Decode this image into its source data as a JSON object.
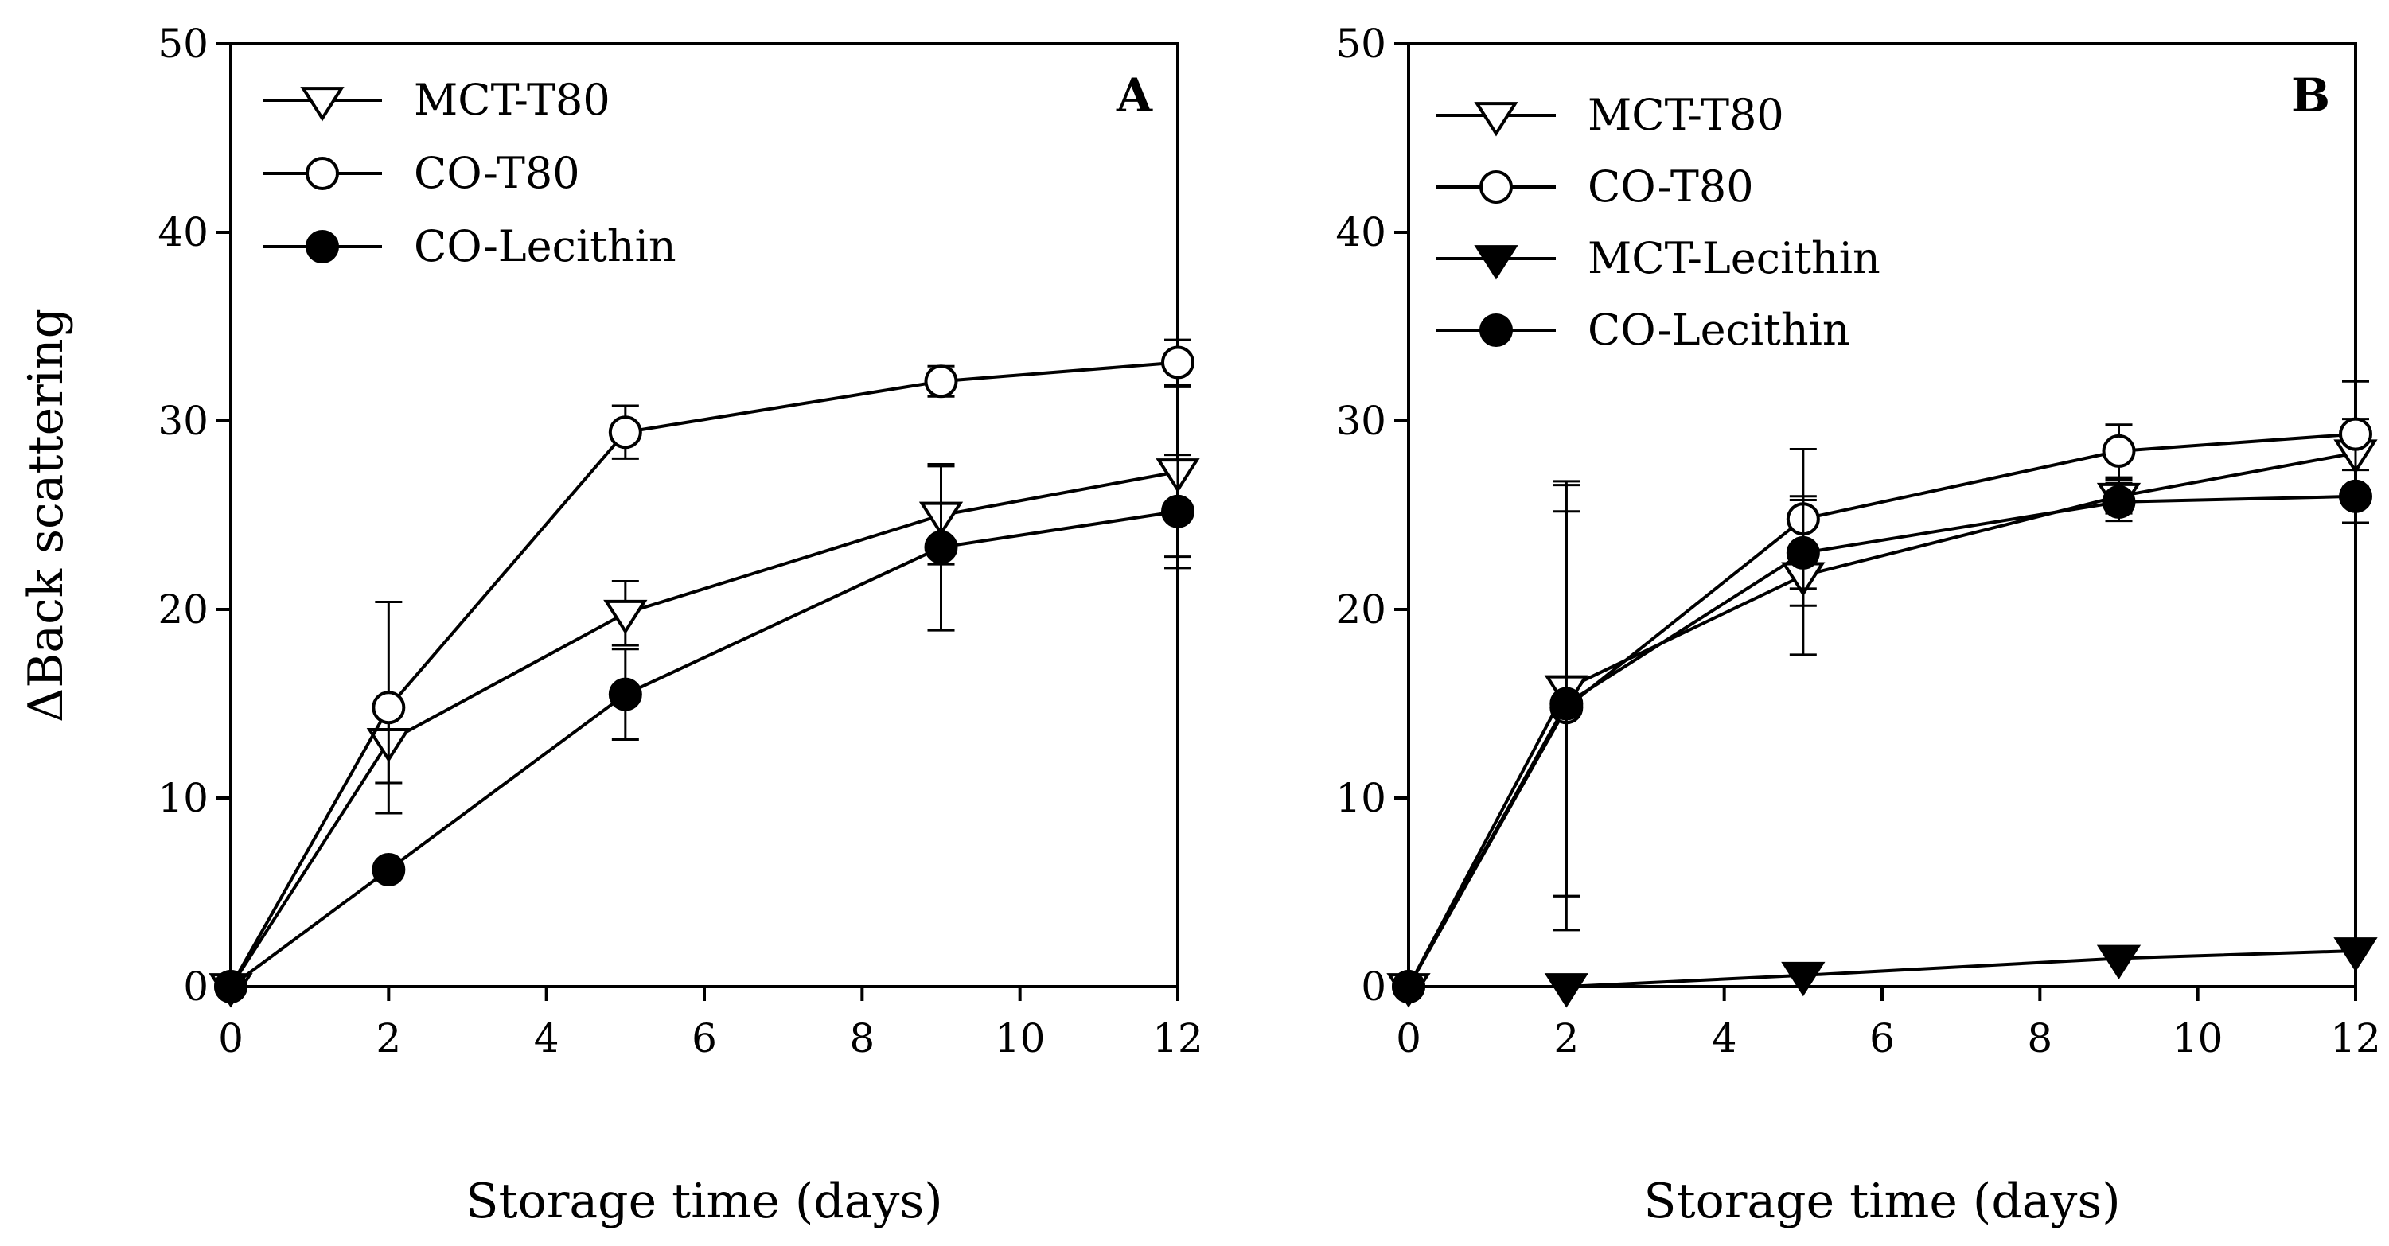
{
  "chart_data": [
    {
      "type": "line",
      "panel_label": "A",
      "xlabel": "Storage time (days)",
      "ylabel": "ΔBack scattering",
      "xlim": [
        0,
        12
      ],
      "ylim": [
        0,
        50
      ],
      "xticks": [
        "0",
        "2",
        "4",
        "6",
        "8",
        "10",
        "12"
      ],
      "yticks": [
        "0",
        "10",
        "20",
        "30",
        "40",
        "50"
      ],
      "legend_position": "top-left",
      "series": [
        {
          "name": "MCT-T80",
          "marker": "triangle-down-open",
          "x": [
            0,
            2,
            5,
            9,
            12
          ],
          "y": [
            0,
            13.0,
            19.8,
            25.0,
            27.3
          ],
          "err": [
            0,
            2.2,
            1.7,
            2.6,
            4.5
          ]
        },
        {
          "name": "CO-T80",
          "marker": "circle-open",
          "x": [
            0,
            2,
            5,
            9,
            12
          ],
          "y": [
            0,
            14.8,
            29.4,
            32.1,
            33.1
          ],
          "err": [
            0,
            5.6,
            1.4,
            0.8,
            1.2
          ]
        },
        {
          "name": "CO-Lecithin",
          "marker": "circle-filled",
          "x": [
            0,
            2,
            5,
            9,
            12
          ],
          "y": [
            0,
            6.2,
            15.5,
            23.3,
            25.2
          ],
          "err": [
            0,
            0,
            2.4,
            4.4,
            3.0
          ]
        }
      ]
    },
    {
      "type": "line",
      "panel_label": "B",
      "xlabel": "Storage time (days)",
      "ylabel": "",
      "xlim": [
        0,
        12
      ],
      "ylim": [
        0,
        50
      ],
      "xticks": [
        "0",
        "2",
        "4",
        "6",
        "8",
        "10",
        "12"
      ],
      "yticks": [
        "0",
        "10",
        "20",
        "30",
        "40",
        "50"
      ],
      "legend_position": "top-left",
      "series": [
        {
          "name": "MCT-T80",
          "marker": "triangle-down-open",
          "x": [
            0,
            2,
            5,
            9,
            12
          ],
          "y": [
            0,
            15.8,
            21.8,
            26.0,
            28.3
          ],
          "err": [
            0,
            11.0,
            4.2,
            0.9,
            1.8
          ]
        },
        {
          "name": "CO-T80",
          "marker": "circle-open",
          "x": [
            0,
            2,
            5,
            9,
            12
          ],
          "y": [
            0,
            14.8,
            24.8,
            28.4,
            29.3
          ],
          "err": [
            0,
            11.8,
            3.7,
            1.4,
            2.8
          ]
        },
        {
          "name": "MCT-Lecithin",
          "marker": "triangle-down-filled",
          "x": [
            2,
            5,
            9,
            12
          ],
          "y": [
            0,
            0.6,
            1.5,
            1.9
          ],
          "err": [
            0,
            0,
            0,
            0
          ]
        },
        {
          "name": "CO-Lecithin",
          "marker": "circle-filled",
          "x": [
            0,
            2,
            5,
            9,
            12
          ],
          "y": [
            0,
            15.0,
            23.0,
            25.7,
            26.0
          ],
          "err": [
            0,
            10.2,
            2.8,
            1.0,
            1.4
          ]
        }
      ]
    }
  ]
}
